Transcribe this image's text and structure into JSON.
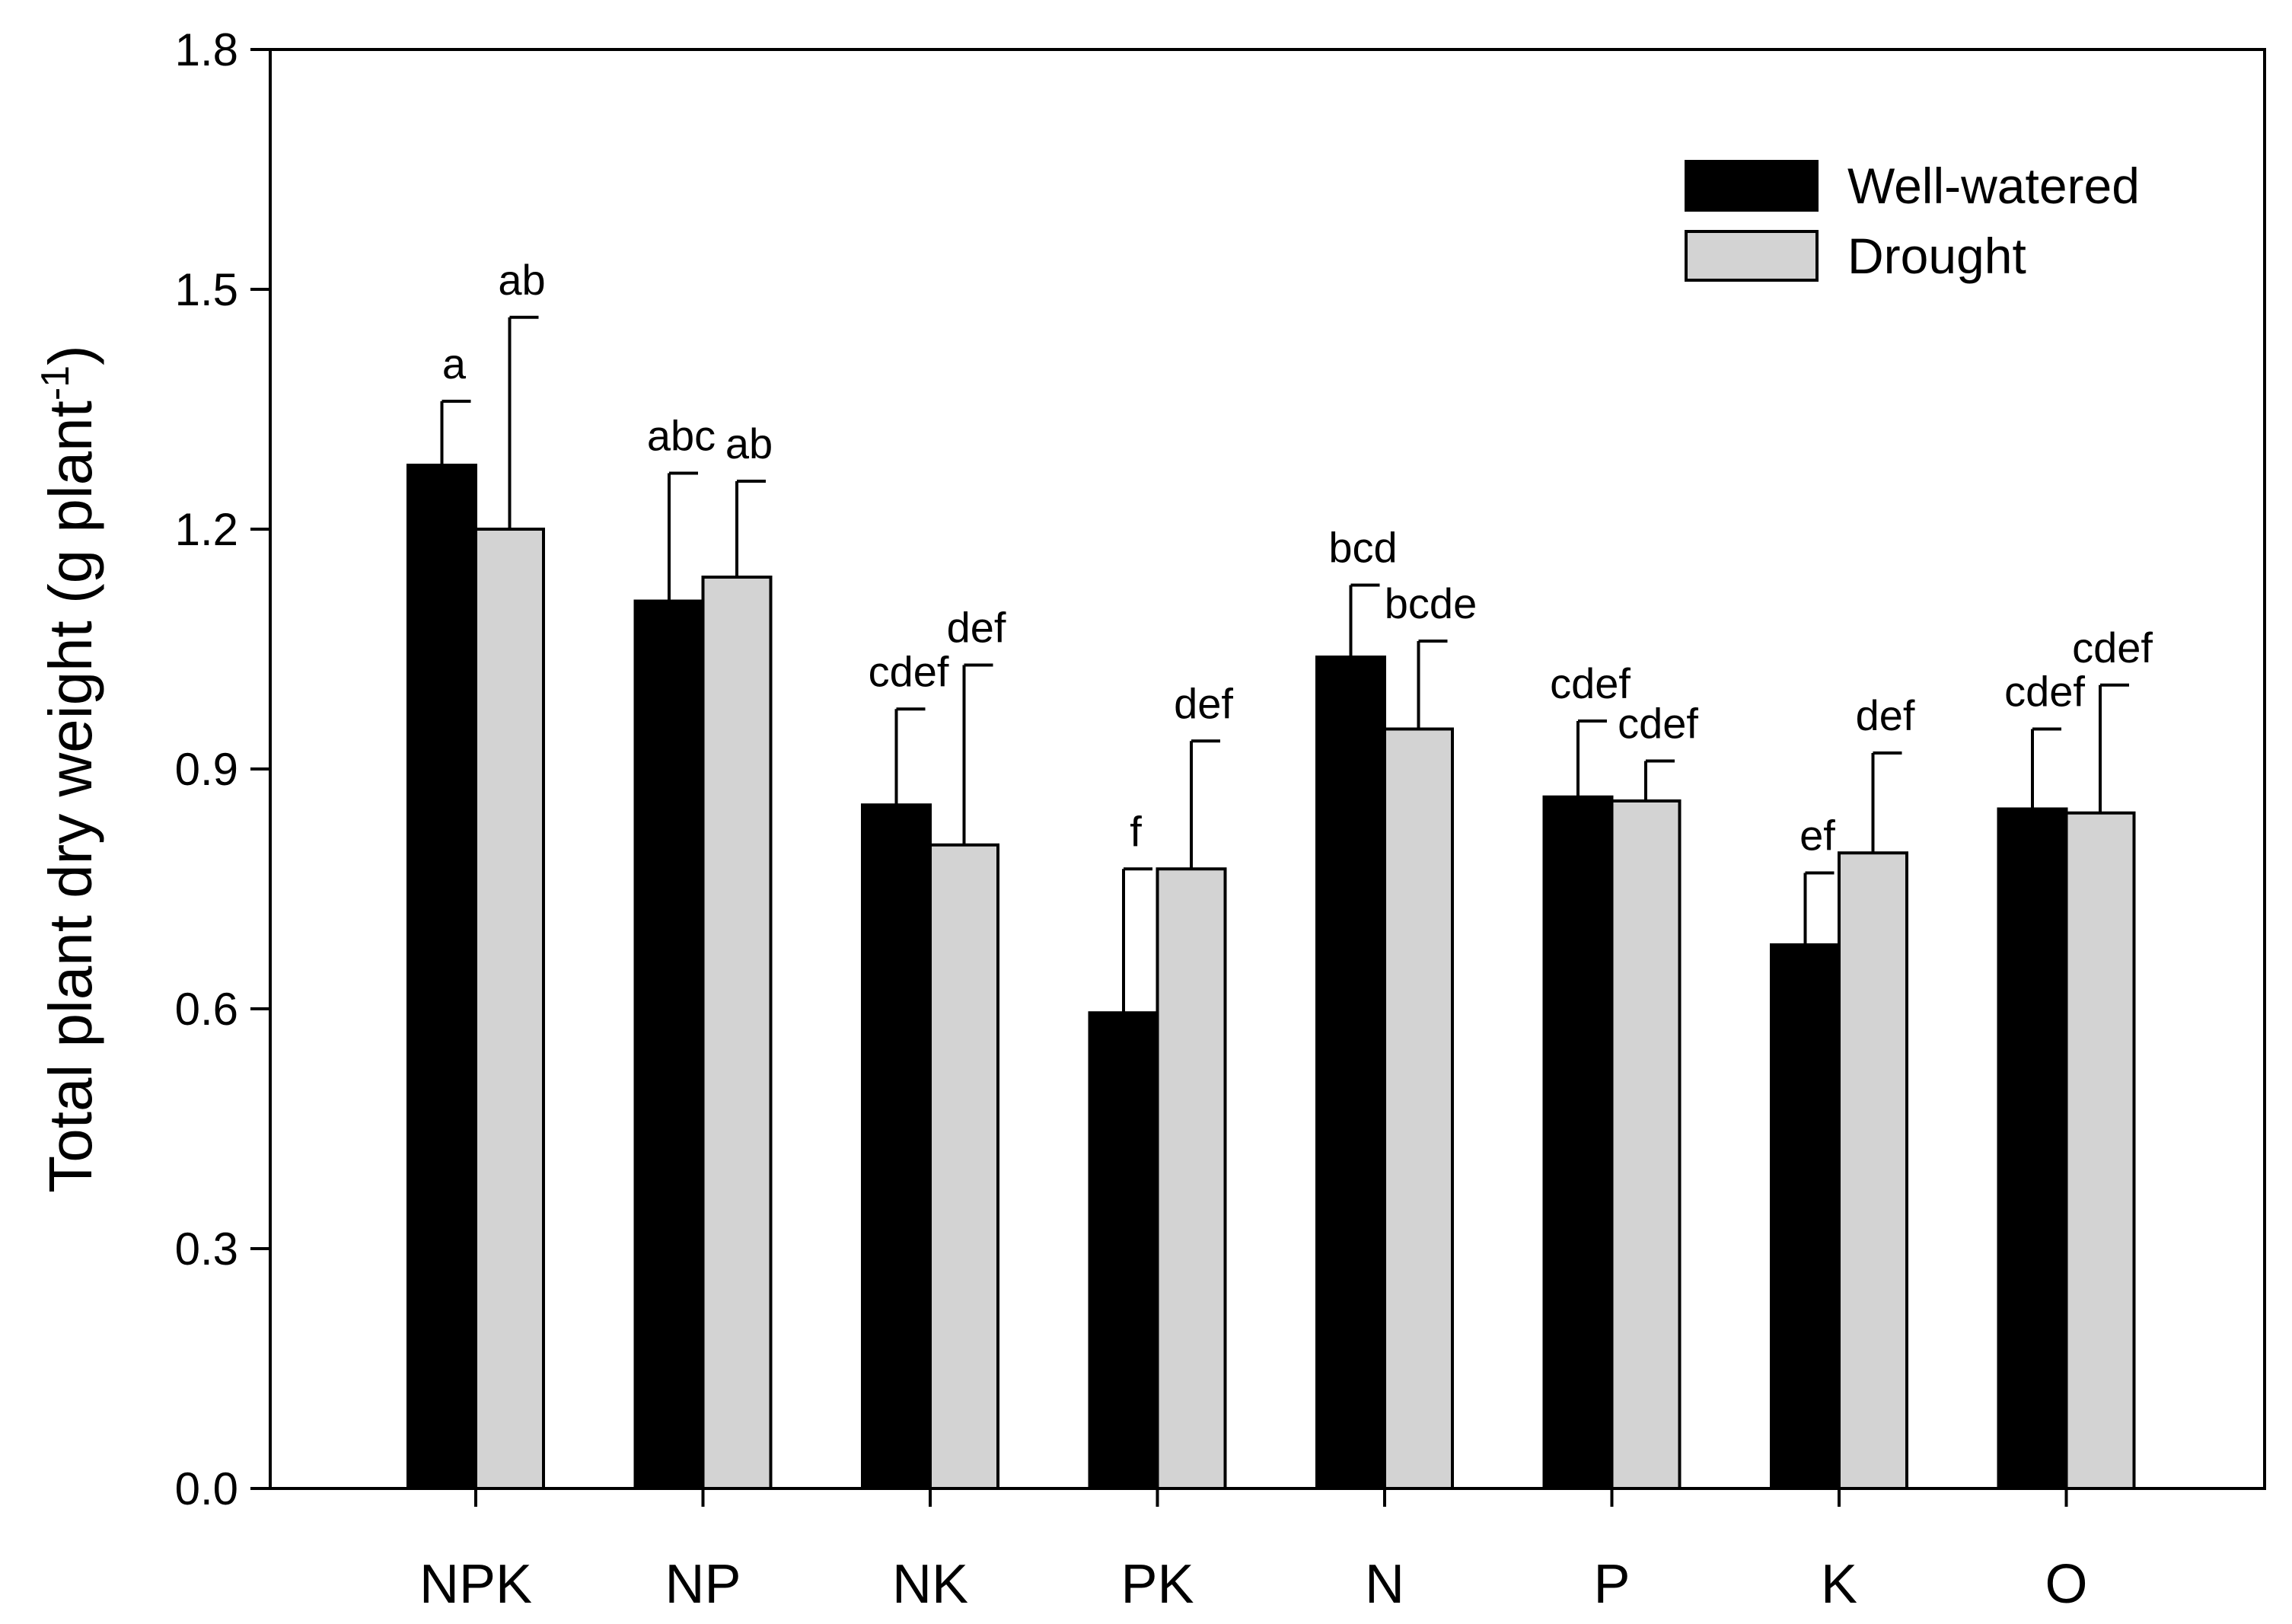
{
  "chart_data": {
    "type": "bar",
    "title": "",
    "xlabel": "",
    "ylabel": "Total plant dry weight (g plant",
    "ylabel_superscript": "-1",
    "ylabel_suffix": ")",
    "ylim": [
      0,
      1.8
    ],
    "yticks": [
      0.0,
      0.3,
      0.6,
      0.9,
      1.2,
      1.5,
      1.8
    ],
    "ytick_labels": [
      "0.0",
      "0.3",
      "0.6",
      "0.9",
      "1.2",
      "1.5",
      "1.8"
    ],
    "categories": [
      "NPK",
      "NP",
      "NK",
      "PK",
      "N",
      "P",
      "K",
      "O"
    ],
    "legend_position": "top-right",
    "grid": false,
    "series": [
      {
        "name": "Well-watered",
        "color": "#000000",
        "values": [
          1.28,
          1.11,
          0.855,
          0.595,
          1.04,
          0.865,
          0.68,
          0.85
        ],
        "errors": [
          0.08,
          0.16,
          0.12,
          0.18,
          0.09,
          0.095,
          0.09,
          0.1
        ],
        "letters": [
          "a",
          "abc",
          "cdef",
          "f",
          "bcd",
          "cdef",
          "ef",
          "cdef"
        ]
      },
      {
        "name": "Drought",
        "color": "#d3d3d3",
        "values": [
          1.2,
          1.14,
          0.805,
          0.775,
          0.95,
          0.86,
          0.795,
          0.845
        ],
        "errors": [
          0.265,
          0.12,
          0.225,
          0.16,
          0.11,
          0.05,
          0.125,
          0.16
        ],
        "letters": [
          "ab",
          "ab",
          "def",
          "def",
          "bcde",
          "cdef",
          "def",
          "cdef"
        ]
      }
    ]
  }
}
